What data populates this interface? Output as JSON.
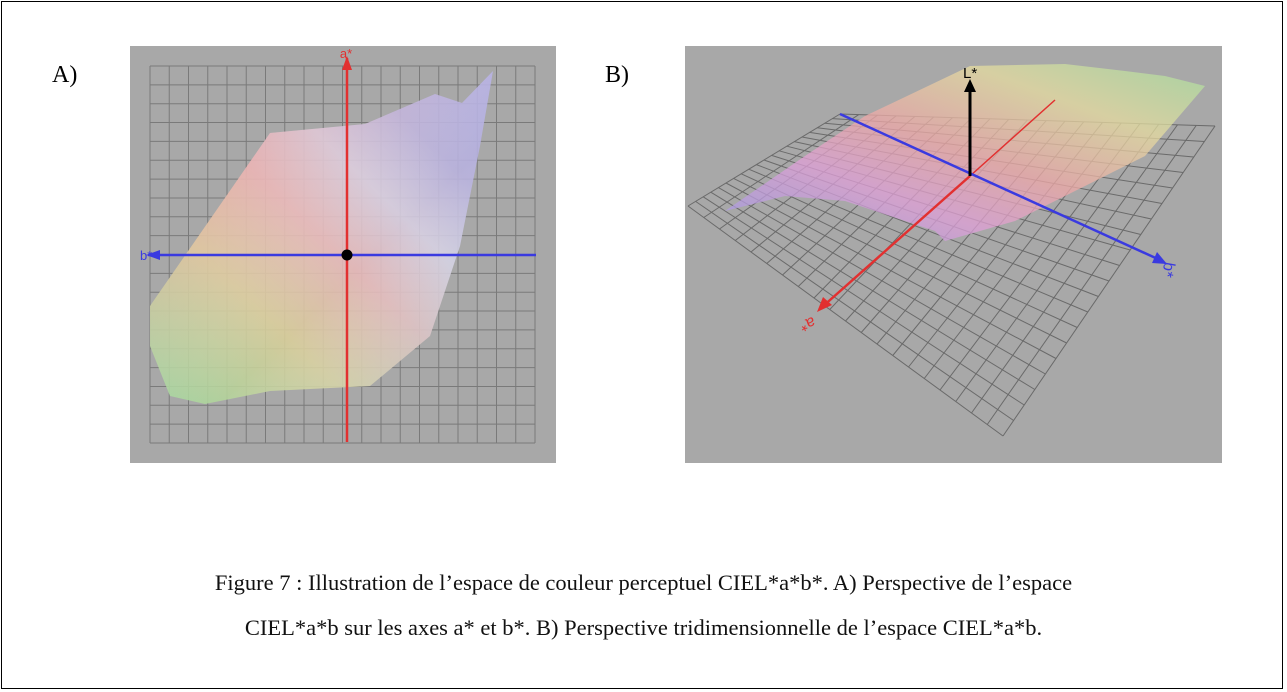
{
  "figure": {
    "panels": [
      {
        "label": "A)",
        "axes": {
          "a": "a*",
          "b": "b*"
        }
      },
      {
        "label": "B)",
        "axes": {
          "l": "L*",
          "a": "a*",
          "b": "b*"
        }
      }
    ],
    "caption": [
      "Figure 7 : Illustration de l’espace de couleur perceptuel CIEL*a*b*. A) Perspective de l’espace",
      "CIEL*a*b sur les axes a* et b*. B) Perspective tridimensionnelle de l’espace CIEL*a*b."
    ]
  }
}
